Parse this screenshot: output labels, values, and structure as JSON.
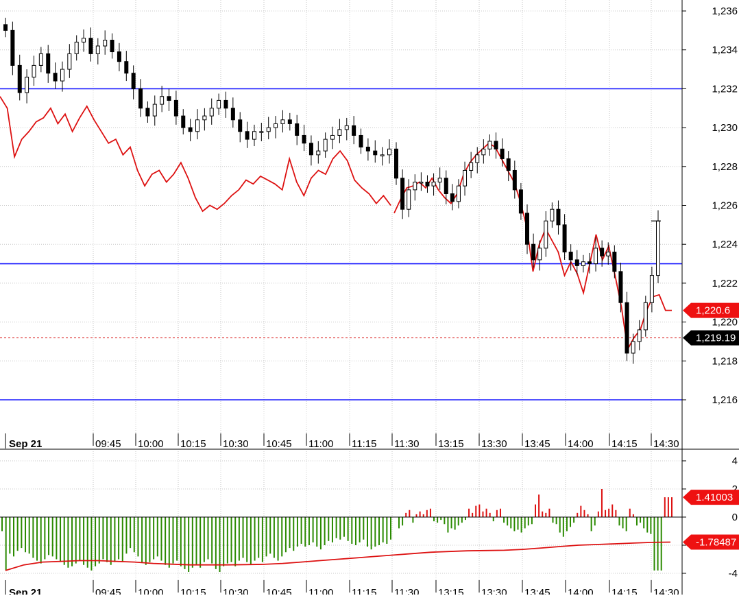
{
  "chart_data": [
    {
      "type": "candlestick",
      "panel": "price",
      "date_label": "Sep 21",
      "time_ticks": [
        "09:45",
        "10:00",
        "10:15",
        "10:30",
        "10:45",
        "11:00",
        "11:15",
        "11:30",
        "13:15",
        "13:30",
        "13:45",
        "14:00",
        "14:15",
        "14:30"
      ],
      "y_ticks": [
        "1,236",
        "1,234",
        "1,232",
        "1,230",
        "1,228",
        "1,226",
        "1,224",
        "1,222",
        "1,220",
        "1,218",
        "1,216"
      ],
      "ylim": [
        1215.0,
        1236.6
      ],
      "grid": true,
      "horizontal_lines": [
        1232.0,
        1223.0,
        1216.0
      ],
      "reference_line": 1219.19,
      "price_close": [
        1235.0,
        1233.2,
        1231.8,
        1232.6,
        1233.2,
        1233.8,
        1232.8,
        1232.4,
        1233.0,
        1233.8,
        1234.4,
        1234.6,
        1233.8,
        1234.2,
        1234.5,
        1233.9,
        1233.4,
        1232.8,
        1232.0,
        1231.0,
        1230.6,
        1231.2,
        1231.6,
        1231.4,
        1230.6,
        1230.0,
        1229.8,
        1230.4,
        1230.6,
        1231.0,
        1231.4,
        1231.0,
        1230.4,
        1229.8,
        1229.4,
        1229.8,
        1229.8,
        1230.0,
        1230.2,
        1230.4,
        1230.2,
        1229.6,
        1229.2,
        1228.6,
        1228.8,
        1229.4,
        1229.6,
        1229.9,
        1230.1,
        1229.6,
        1229.0,
        1228.8,
        1228.6,
        1228.6,
        1228.9,
        1227.4,
        1225.8,
        1226.8,
        1227.2,
        1227.2,
        1227.0,
        1227.2,
        1227.4,
        1226.6,
        1226.2,
        1227.0,
        1227.8,
        1228.2,
        1228.6,
        1228.9,
        1229.3,
        1228.9,
        1228.4,
        1227.8,
        1226.8,
        1225.6,
        1224.0,
        1223.2,
        1223.8,
        1225.2,
        1225.8,
        1225.0,
        1223.6,
        1223.2,
        1222.9,
        1223.1,
        1223.0,
        1223.8,
        1223.4,
        1223.6,
        1222.6,
        1221.0,
        1218.4,
        1219.0,
        1219.6,
        1221.0,
        1222.4,
        1225.2
      ],
      "series": [
        {
          "name": "",
          "color": "#dd1111",
          "values": [
            1231.6,
            1231.0,
            1228.5,
            1229.4,
            1229.8,
            1230.3,
            1230.5,
            1231.0,
            1230.2,
            1230.7,
            1229.8,
            1230.5,
            1231.1,
            1230.4,
            1229.8,
            1229.2,
            1229.4,
            1228.6,
            1229.0,
            1227.8,
            1227.0,
            1227.6,
            1227.8,
            1227.2,
            1227.6,
            1228.2,
            1227.4,
            1226.4,
            1225.7,
            1226.0,
            1225.8,
            1226.1,
            1226.5,
            1226.8,
            1227.3,
            1227.1,
            1227.5,
            1227.3,
            1227.1,
            1226.8,
            1228.4,
            1227.2,
            1226.5,
            1227.4,
            1227.8,
            1227.6,
            1228.4,
            1228.8,
            1228.3,
            1227.3,
            1226.9,
            1226.6,
            1226.1,
            1226.5,
            1226.0,
            1225.6,
            1226.3,
            1226.9,
            1227.0,
            1227.2,
            1226.9,
            1227.4,
            1226.8,
            1226.4,
            1226.1,
            1226.6,
            1227.6,
            1228.2,
            1228.6,
            1228.9,
            1229.2,
            1229.0,
            1228.4,
            1227.8,
            1227.2,
            1226.2,
            1224.9,
            1222.6,
            1224.0,
            1224.8,
            1224.2,
            1223.6,
            1222.4,
            1223.1,
            1222.5,
            1221.5,
            1223.0,
            1224.5,
            1223.2,
            1223.9,
            1222.4,
            1220.8,
            1218.6,
            1219.2,
            1219.6,
            1220.6,
            1221.3,
            1221.4,
            1220.6,
            1220.6
          ]
        }
      ],
      "labels": {
        "red_value": "1,220.6",
        "ref_value": "1,219.19"
      }
    },
    {
      "type": "bar",
      "panel": "oscillator",
      "y_ticks": [
        "4",
        "2",
        "0",
        "-2",
        "-4"
      ],
      "ylim": [
        -4.4,
        4.6
      ],
      "bars": [
        -1.0,
        -3.8,
        -2.6,
        -2.8,
        -2.4,
        -2.2,
        -2.5,
        -2.6,
        -2.9,
        -3.1,
        -3.3,
        -3.0,
        -2.7,
        -2.8,
        -3.0,
        -3.2,
        -3.4,
        -3.6,
        -3.5,
        -3.3,
        -3.1,
        -3.4,
        -3.6,
        -3.8,
        -3.5,
        -3.3,
        -3.0,
        -3.2,
        -3.4,
        -3.2,
        -3.0,
        -3.2,
        -2.6,
        -2.2,
        -2.5,
        -2.8,
        -3.2,
        -3.4,
        -3.2,
        -3.0,
        -2.8,
        -3.1,
        -3.4,
        -3.6,
        -3.3,
        -3.1,
        -3.5,
        -3.7,
        -3.9,
        -3.6,
        -3.4,
        -3.6,
        -3.2,
        -3.0,
        -3.3,
        -3.7,
        -3.9,
        -3.5,
        -3.3,
        -3.2,
        -3.5,
        -3.1,
        -2.9,
        -3.2,
        -3.4,
        -3.1,
        -2.9,
        -3.2,
        -2.8,
        -2.6,
        -2.9,
        -3.1,
        -2.8,
        -2.5,
        -2.2,
        -2.4,
        -2.1,
        -1.9,
        -2.1,
        -2.0,
        -1.8,
        -2.1,
        -2.3,
        -2.0,
        -1.7,
        -1.8,
        -1.5,
        -1.6,
        -1.4,
        -1.7,
        -1.9,
        -2.0,
        -1.8,
        -1.6,
        -2.1,
        -2.3,
        -2.1,
        -2.0,
        -1.8,
        -1.9,
        -1.6,
        -0.8,
        -0.6,
        0.3,
        0.5,
        -0.4,
        0.2,
        0.4,
        0.2,
        0.5,
        0.6,
        -0.3,
        -0.4,
        -0.2,
        -0.5,
        -1.1,
        -0.8,
        -0.9,
        -0.6,
        -0.4,
        -0.2,
        0.6,
        0.3,
        0.8,
        0.9,
        0.4,
        0.6,
        0.3,
        -0.3,
        0.5,
        0.6,
        -0.4,
        -0.6,
        -0.8,
        -1.0,
        -0.9,
        -1.1,
        -0.8,
        -0.6,
        -0.5,
        0.9,
        1.6,
        0.4,
        0.3,
        0.6,
        -0.4,
        -0.5,
        -1.1,
        -1.4,
        -1.0,
        -0.7,
        -0.4,
        0.3,
        0.8,
        0.5,
        0.2,
        -1.0,
        -0.6,
        0.4,
        2.0,
        0.5,
        0.6,
        0.9,
        0.5,
        -0.6,
        -0.8,
        -1.0,
        0.6,
        0.2,
        -0.6,
        -0.4,
        -0.8,
        -1.1,
        -1.2,
        -3.8,
        -3.8,
        -3.8,
        1.41,
        1.41,
        1.41
      ],
      "signal": [
        -3.8,
        -3.4,
        -3.2,
        -3.15,
        -3.1,
        -3.1,
        -3.15,
        -3.2,
        -3.3,
        -3.35,
        -3.4,
        -3.4,
        -3.4,
        -3.38,
        -3.36,
        -3.3,
        -3.2,
        -3.1,
        -3.0,
        -2.9,
        -2.8,
        -2.7,
        -2.6,
        -2.5,
        -2.45,
        -2.4,
        -2.38,
        -2.36,
        -2.3,
        -2.2,
        -2.1,
        -2.0,
        -1.95,
        -1.9,
        -1.85,
        -1.8,
        -1.78
      ],
      "labels": {
        "bar_value": "1.41003",
        "signal_value": "-1.78487"
      },
      "grid": true
    }
  ]
}
